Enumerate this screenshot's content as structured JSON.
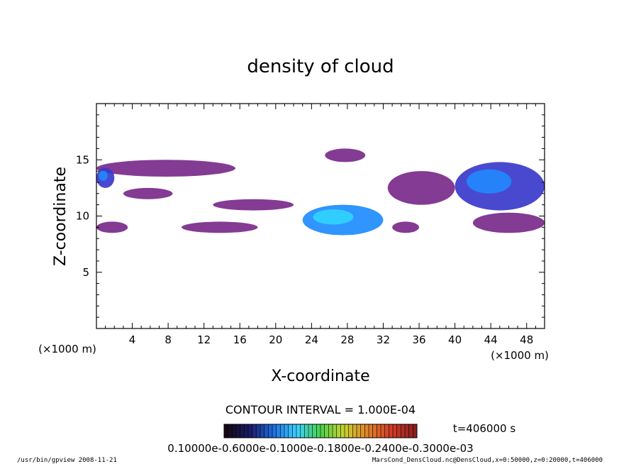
{
  "chart_data": {
    "type": "heatmap",
    "title": "density of cloud",
    "xlabel": "X-coordinate",
    "ylabel": "Z-coordinate",
    "x_unit_left": "(×1000 m)",
    "x_unit_right": "(×1000 m)",
    "xlim": [
      0,
      50
    ],
    "ylim": [
      0,
      20
    ],
    "xticks": [
      "4",
      "8",
      "12",
      "16",
      "20",
      "24",
      "28",
      "32",
      "36",
      "40",
      "44",
      "48"
    ],
    "yticks": [
      "5",
      "10",
      "15"
    ],
    "contour_interval": "CONTOUR INTERVAL = 1.000E-04",
    "time_label": "t=406000 s",
    "colorbar_labels": "0.10000e-0.6000e-0.1000e-0.1800e-0.2400e-0.3000e-03",
    "regions": [
      {
        "name": "upper-band",
        "x0": 0,
        "x1": 15.5,
        "z0": 13.5,
        "z1": 15,
        "level": 0.35
      },
      {
        "name": "left-upper",
        "x0": 0,
        "x1": 2,
        "z0": 12.5,
        "z1": 14.3,
        "level": 0.55
      },
      {
        "name": "left-low",
        "x0": 0,
        "x1": 3.5,
        "z0": 8.5,
        "z1": 9.5,
        "level": 0.45
      },
      {
        "name": "mid-left-small",
        "x0": 3,
        "x1": 8.5,
        "z0": 11.5,
        "z1": 12.5,
        "level": 0.25
      },
      {
        "name": "low-band",
        "x0": 9.5,
        "x1": 18,
        "z0": 8.5,
        "z1": 9.5,
        "level": 0.3
      },
      {
        "name": "mid-band",
        "x0": 13,
        "x1": 22,
        "z0": 10.5,
        "z1": 11.5,
        "level": 0.3
      },
      {
        "name": "central-cloud",
        "x0": 23,
        "x1": 32,
        "z0": 8.3,
        "z1": 11,
        "level": 0.85
      },
      {
        "name": "top-small",
        "x0": 25.5,
        "x1": 30,
        "z0": 14.8,
        "z1": 16,
        "level": 0.35
      },
      {
        "name": "right-mid",
        "x0": 32.5,
        "x1": 40,
        "z0": 11,
        "z1": 14,
        "level": 0.3
      },
      {
        "name": "right-low",
        "x0": 33,
        "x1": 36,
        "z0": 8.5,
        "z1": 9.5,
        "level": 0.25
      },
      {
        "name": "far-right",
        "x0": 40,
        "x1": 50,
        "z0": 10.5,
        "z1": 14.8,
        "level": 0.6
      },
      {
        "name": "far-right-low",
        "x0": 42,
        "x1": 50,
        "z0": 8.5,
        "z1": 10.3,
        "level": 0.45
      }
    ]
  },
  "footer": {
    "left": "/usr/bin/gpview   2008-11-21",
    "right": "MarsCond_DensCloud.nc@DensCloud,x=0:50000,z=0:20000,t=406000"
  },
  "colors": {
    "low": "#7a2a8a",
    "mid": "#3a3acc",
    "high": "#1e8cff",
    "peak": "#30d8ff"
  }
}
